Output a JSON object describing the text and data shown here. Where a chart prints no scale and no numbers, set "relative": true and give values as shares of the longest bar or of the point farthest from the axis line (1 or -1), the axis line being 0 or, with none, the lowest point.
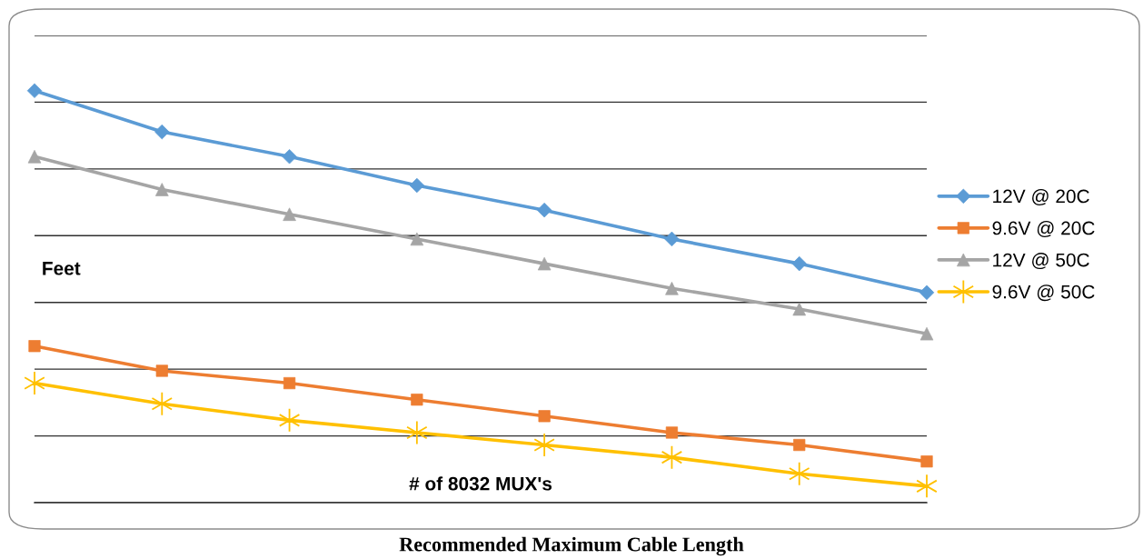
{
  "chart_data": {
    "type": "line",
    "title": "Recommended Maximum Cable Length",
    "xlabel": "# of 8032 MUX's",
    "ylabel": "Feet",
    "categories": [
      null,
      null,
      null,
      null,
      null,
      null,
      null,
      null
    ],
    "relative": true,
    "grid": "y",
    "legend": "right",
    "line_style": "solid",
    "series": [
      {
        "name": "12V @ 20C",
        "color": "#5b9bd5",
        "marker": "diamond",
        "values": [
          1.0,
          0.9,
          0.84,
          0.77,
          0.71,
          0.64,
          0.58,
          0.51
        ]
      },
      {
        "name": "9.6V @ 20C",
        "color": "#ed7d31",
        "marker": "square",
        "values": [
          0.38,
          0.32,
          0.29,
          0.25,
          0.21,
          0.17,
          0.14,
          0.1
        ]
      },
      {
        "name": "12V @ 50C",
        "color": "#a5a5a5",
        "marker": "triangle",
        "values": [
          0.84,
          0.76,
          0.7,
          0.64,
          0.58,
          0.52,
          0.47,
          0.41
        ]
      },
      {
        "name": "9.6V @ 50C",
        "color": "#ffc000",
        "marker": "cross",
        "values": [
          0.29,
          0.24,
          0.2,
          0.17,
          0.14,
          0.11,
          0.07,
          0.04
        ]
      }
    ]
  }
}
